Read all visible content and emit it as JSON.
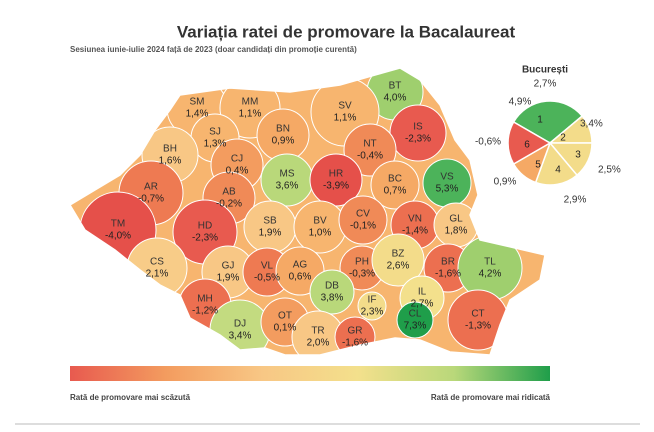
{
  "header": {
    "title": "Variația ratei de promovare la Bacalaureat",
    "subtitle": "Sesiunea iunie-iulie 2024 față de 2023 (doar candidați din promoție curentă)"
  },
  "counties": [
    {
      "code": "SM",
      "value": 1.4,
      "label": "1,4%",
      "color": "#f7b56f"
    },
    {
      "code": "MM",
      "value": 1.1,
      "label": "1,1%",
      "color": "#f7b56f"
    },
    {
      "code": "BT",
      "value": 4.0,
      "label": "4,0%",
      "color": "#9fcf6e"
    },
    {
      "code": "SV",
      "value": 1.1,
      "label": "1,1%",
      "color": "#f7b56f"
    },
    {
      "code": "SJ",
      "value": 1.3,
      "label": "1,3%",
      "color": "#f7b56f"
    },
    {
      "code": "BN",
      "value": 0.9,
      "label": "0,9%",
      "color": "#f5a965"
    },
    {
      "code": "IS",
      "value": -2.3,
      "label": "-2,3%",
      "color": "#e85a4f"
    },
    {
      "code": "BH",
      "value": 1.6,
      "label": "1,6%",
      "color": "#f8c785"
    },
    {
      "code": "CJ",
      "value": 0.4,
      "label": "0,4%",
      "color": "#f39c5f"
    },
    {
      "code": "MS",
      "value": 3.6,
      "label": "3,6%",
      "color": "#b9d87a"
    },
    {
      "code": "NT",
      "value": -0.4,
      "label": "-0,4%",
      "color": "#f08a57"
    },
    {
      "code": "HR",
      "value": -3.9,
      "label": "-3,9%",
      "color": "#e5504a"
    },
    {
      "code": "VS",
      "value": 5.3,
      "label": "5,3%",
      "color": "#4cb35a"
    },
    {
      "code": "BC",
      "value": 0.7,
      "label": "0,7%",
      "color": "#f5a965"
    },
    {
      "code": "AR",
      "value": -0.7,
      "label": "-0,7%",
      "color": "#ee7a52"
    },
    {
      "code": "AB",
      "value": -0.2,
      "label": "-0,2%",
      "color": "#f08a57"
    },
    {
      "code": "TM",
      "value": -4.0,
      "label": "-4,0%",
      "color": "#e5504a"
    },
    {
      "code": "HD",
      "value": -2.3,
      "label": "-2,3%",
      "color": "#e85a4f"
    },
    {
      "code": "SB",
      "value": 1.9,
      "label": "1,9%",
      "color": "#f8c785"
    },
    {
      "code": "BV",
      "value": 1.0,
      "label": "1,0%",
      "color": "#f7b56f"
    },
    {
      "code": "CV",
      "value": -0.1,
      "label": "-0,1%",
      "color": "#f08a57"
    },
    {
      "code": "VN",
      "value": -1.4,
      "label": "-1,4%",
      "color": "#ec6f50"
    },
    {
      "code": "GL",
      "value": 1.8,
      "label": "1,8%",
      "color": "#f8c785"
    },
    {
      "code": "CS",
      "value": 2.1,
      "label": "2,1%",
      "color": "#f8cc88"
    },
    {
      "code": "GJ",
      "value": 1.9,
      "label": "1,9%",
      "color": "#f8c785"
    },
    {
      "code": "VL",
      "value": -0.5,
      "label": "-0,5%",
      "color": "#ee7a52"
    },
    {
      "code": "AG",
      "value": 0.6,
      "label": "0,6%",
      "color": "#f5a965"
    },
    {
      "code": "PH",
      "value": -0.3,
      "label": "-0,3%",
      "color": "#f08a57"
    },
    {
      "code": "BZ",
      "value": 2.6,
      "label": "2,6%",
      "color": "#f3dc8a"
    },
    {
      "code": "BR",
      "value": -1.6,
      "label": "-1,6%",
      "color": "#ec6f50"
    },
    {
      "code": "TL",
      "value": 4.2,
      "label": "4,2%",
      "color": "#9fcf6e"
    },
    {
      "code": "MH",
      "value": -1.2,
      "label": "-1,2%",
      "color": "#ec6f50"
    },
    {
      "code": "DJ",
      "value": 3.4,
      "label": "3,4%",
      "color": "#c3db80"
    },
    {
      "code": "OT",
      "value": 0.1,
      "label": "0,1%",
      "color": "#f39c5f"
    },
    {
      "code": "DB",
      "value": 3.8,
      "label": "3,8%",
      "color": "#b9d87a"
    },
    {
      "code": "TR",
      "value": 2.0,
      "label": "2,0%",
      "color": "#f8c785"
    },
    {
      "code": "GR",
      "value": -1.6,
      "label": "-1,6%",
      "color": "#ec6f50"
    },
    {
      "code": "IF",
      "value": 2.3,
      "label": "2,3%",
      "color": "#f3dc8a"
    },
    {
      "code": "IL",
      "value": 2.7,
      "label": "2,7%",
      "color": "#f3e08c"
    },
    {
      "code": "CL",
      "value": 7.3,
      "label": "7,3%",
      "color": "#1f9e4a"
    },
    {
      "code": "CT",
      "value": -1.3,
      "label": "-1,3%",
      "color": "#ec6f50"
    }
  ],
  "bucharest": {
    "name": "București",
    "value": 2.7,
    "label": "2,7%",
    "sectors": [
      {
        "number": "1",
        "value": 4.9,
        "label": "4,9%",
        "color": "#4cb35a"
      },
      {
        "number": "2",
        "value": 3.4,
        "label": "3,4%",
        "color": "#f3dc8a"
      },
      {
        "number": "3",
        "value": 2.5,
        "label": "2,5%",
        "color": "#f3dc8a"
      },
      {
        "number": "4",
        "value": 2.9,
        "label": "2,9%",
        "color": "#f3dc8a"
      },
      {
        "number": "5",
        "value": 0.9,
        "label": "0,9%",
        "color": "#f5a965"
      },
      {
        "number": "6",
        "value": -0.6,
        "label": "-0,6%",
        "color": "#e85a4f"
      }
    ]
  },
  "legend": {
    "low": "Rată de promovare mai scăzută",
    "high": "Rată de promovare mai ridicată",
    "colors": [
      "#e85a4f",
      "#f39c5f",
      "#f8c785",
      "#f3e08c",
      "#b9d87a",
      "#1f9e4a"
    ]
  }
}
